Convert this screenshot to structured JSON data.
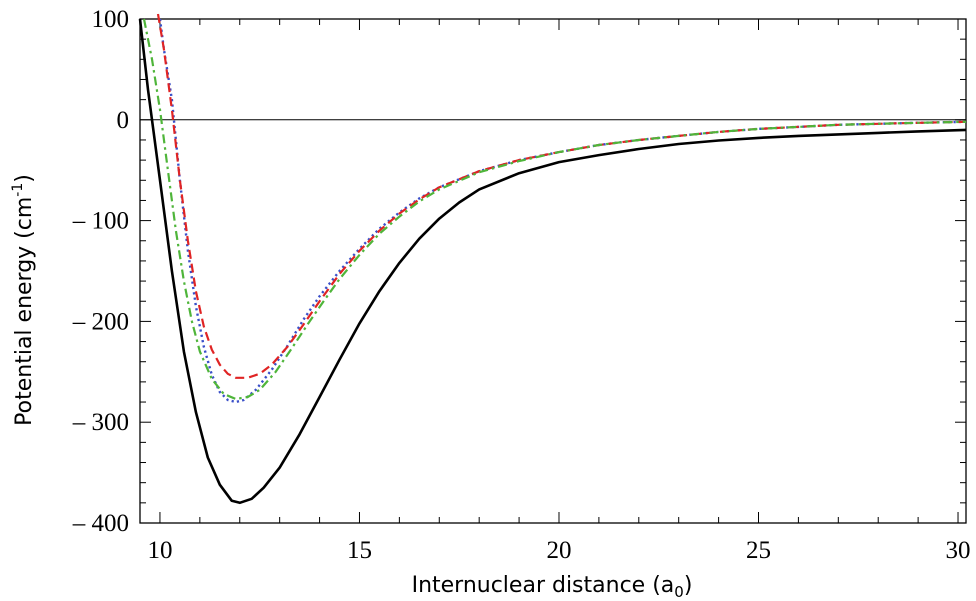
{
  "chart_data": {
    "type": "line",
    "title": "",
    "xlabel": {
      "main": "Internuclear distance (a",
      "sub": "0",
      "end": ")"
    },
    "ylabel": {
      "main": "Potential energy (cm",
      "sup": "-1",
      "end": ")"
    },
    "xlim": [
      9.5,
      30.2
    ],
    "ylim": [
      -400,
      100
    ],
    "x_ticks": [
      10,
      15,
      20,
      25,
      30
    ],
    "x_tick_labels": [
      "10",
      "15",
      "20",
      "25",
      "30"
    ],
    "y_ticks": [
      100,
      0,
      -100,
      -200,
      -300,
      -400
    ],
    "y_tick_labels": [
      "100",
      "0",
      "– 100",
      "– 200",
      "– 300",
      "– 400"
    ],
    "grid": false,
    "legend": "none",
    "zero_line": true,
    "series": [
      {
        "color": "#000000",
        "style": "solid",
        "points": [
          [
            9.5,
            100
          ],
          [
            9.7,
            30
          ],
          [
            10.0,
            -60
          ],
          [
            10.3,
            -150
          ],
          [
            10.6,
            -230
          ],
          [
            10.9,
            -290
          ],
          [
            11.2,
            -335
          ],
          [
            11.5,
            -362
          ],
          [
            11.8,
            -378
          ],
          [
            12.0,
            -380
          ],
          [
            12.3,
            -376
          ],
          [
            12.6,
            -365
          ],
          [
            13.0,
            -345
          ],
          [
            13.5,
            -312
          ],
          [
            14.0,
            -275
          ],
          [
            14.5,
            -238
          ],
          [
            15.0,
            -202
          ],
          [
            15.5,
            -170
          ],
          [
            16.0,
            -142
          ],
          [
            16.5,
            -118
          ],
          [
            17.0,
            -98
          ],
          [
            17.5,
            -82
          ],
          [
            18.0,
            -69
          ],
          [
            19.0,
            -53
          ],
          [
            20.0,
            -42
          ],
          [
            21.0,
            -35
          ],
          [
            22.0,
            -29
          ],
          [
            23.0,
            -24
          ],
          [
            24.0,
            -20.5
          ],
          [
            25.0,
            -18
          ],
          [
            26.0,
            -16
          ],
          [
            27.0,
            -14.5
          ],
          [
            28.0,
            -13
          ],
          [
            29.0,
            -11.5
          ],
          [
            30.2,
            -10
          ]
        ]
      },
      {
        "color": "#3a4fc9",
        "style": "dotted",
        "points": [
          [
            10.0,
            100
          ],
          [
            10.1,
            70
          ],
          [
            10.3,
            20
          ],
          [
            10.5,
            -60
          ],
          [
            10.7,
            -130
          ],
          [
            10.9,
            -185
          ],
          [
            11.1,
            -225
          ],
          [
            11.3,
            -253
          ],
          [
            11.5,
            -270
          ],
          [
            11.7,
            -278
          ],
          [
            11.9,
            -280
          ],
          [
            12.1,
            -278
          ],
          [
            12.4,
            -268
          ],
          [
            12.8,
            -248
          ],
          [
            13.2,
            -224
          ],
          [
            13.6,
            -198
          ],
          [
            14.0,
            -175
          ],
          [
            14.5,
            -150
          ],
          [
            15.0,
            -128
          ],
          [
            15.5,
            -108
          ],
          [
            16.0,
            -92
          ],
          [
            16.5,
            -78
          ],
          [
            17.0,
            -67
          ],
          [
            18.0,
            -51
          ],
          [
            19.0,
            -40
          ],
          [
            20.0,
            -32
          ],
          [
            21.0,
            -25
          ],
          [
            22.0,
            -20
          ],
          [
            23.0,
            -16
          ],
          [
            24.0,
            -12
          ],
          [
            25.0,
            -9
          ],
          [
            26.0,
            -7
          ],
          [
            27.0,
            -5
          ],
          [
            28.0,
            -4
          ],
          [
            29.0,
            -3
          ],
          [
            30.2,
            -2
          ]
        ]
      },
      {
        "color": "#e02424",
        "style": "dashed",
        "points": [
          [
            9.95,
            105
          ],
          [
            10.1,
            70
          ],
          [
            10.3,
            10
          ],
          [
            10.5,
            -60
          ],
          [
            10.7,
            -120
          ],
          [
            10.9,
            -170
          ],
          [
            11.1,
            -205
          ],
          [
            11.3,
            -228
          ],
          [
            11.5,
            -243
          ],
          [
            11.7,
            -252
          ],
          [
            11.9,
            -256
          ],
          [
            12.2,
            -256
          ],
          [
            12.5,
            -252
          ],
          [
            12.8,
            -243
          ],
          [
            13.2,
            -225
          ],
          [
            13.6,
            -203
          ],
          [
            14.0,
            -180
          ],
          [
            14.5,
            -153
          ],
          [
            15.0,
            -130
          ],
          [
            15.5,
            -110
          ],
          [
            16.0,
            -93
          ],
          [
            16.5,
            -79
          ],
          [
            17.0,
            -67
          ],
          [
            18.0,
            -51
          ],
          [
            19.0,
            -40
          ],
          [
            20.0,
            -32
          ],
          [
            21.0,
            -25
          ],
          [
            22.0,
            -20
          ],
          [
            23.0,
            -16
          ],
          [
            24.0,
            -12
          ],
          [
            25.0,
            -9
          ],
          [
            26.0,
            -7
          ],
          [
            27.0,
            -5
          ],
          [
            28.0,
            -4
          ],
          [
            29.0,
            -3
          ],
          [
            30.2,
            -2
          ]
        ]
      },
      {
        "color": "#4fb53a",
        "style": "dashdot",
        "points": [
          [
            9.6,
            100
          ],
          [
            9.8,
            60
          ],
          [
            10.0,
            10
          ],
          [
            10.2,
            -50
          ],
          [
            10.4,
            -110
          ],
          [
            10.6,
            -160
          ],
          [
            10.8,
            -200
          ],
          [
            11.0,
            -230
          ],
          [
            11.3,
            -257
          ],
          [
            11.6,
            -272
          ],
          [
            11.9,
            -277
          ],
          [
            12.2,
            -275
          ],
          [
            12.5,
            -268
          ],
          [
            12.9,
            -250
          ],
          [
            13.3,
            -227
          ],
          [
            13.7,
            -203
          ],
          [
            14.1,
            -180
          ],
          [
            14.5,
            -158
          ],
          [
            15.0,
            -134
          ],
          [
            15.5,
            -113
          ],
          [
            16.0,
            -96
          ],
          [
            16.5,
            -81
          ],
          [
            17.0,
            -69
          ],
          [
            18.0,
            -52
          ],
          [
            19.0,
            -41
          ],
          [
            20.0,
            -32
          ],
          [
            21.0,
            -25
          ],
          [
            22.0,
            -20
          ],
          [
            23.0,
            -16
          ],
          [
            24.0,
            -12
          ],
          [
            25.0,
            -9
          ],
          [
            26.0,
            -7
          ],
          [
            27.0,
            -5
          ],
          [
            28.0,
            -4
          ],
          [
            29.0,
            -3
          ],
          [
            30.2,
            -2
          ]
        ]
      }
    ]
  }
}
